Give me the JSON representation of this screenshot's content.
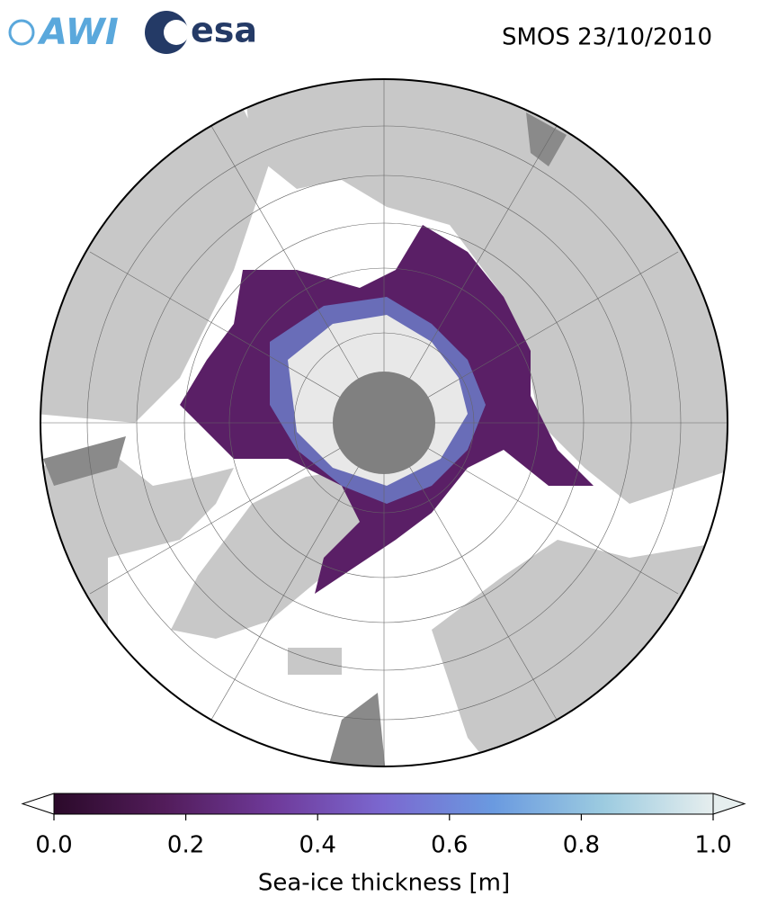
{
  "header": {
    "title": "SMOS 23/10/2010",
    "logos": [
      "AWI",
      "esa"
    ]
  },
  "colorbar": {
    "label": "Sea-ice thickness [m]",
    "lim": [
      0,
      1
    ],
    "ticks": [
      {
        "value": 0,
        "label": "0.0"
      },
      0.2,
      0.4,
      0.6,
      0.8,
      {
        "value": 1,
        "label": "1.0"
      }
    ],
    "colors": [
      "#2b0a2a",
      "#521c5a",
      "#6f3a9a",
      "#7b68d0",
      "#6a9ae0",
      "#9ccbe0",
      "#e6eeee"
    ]
  }
}
